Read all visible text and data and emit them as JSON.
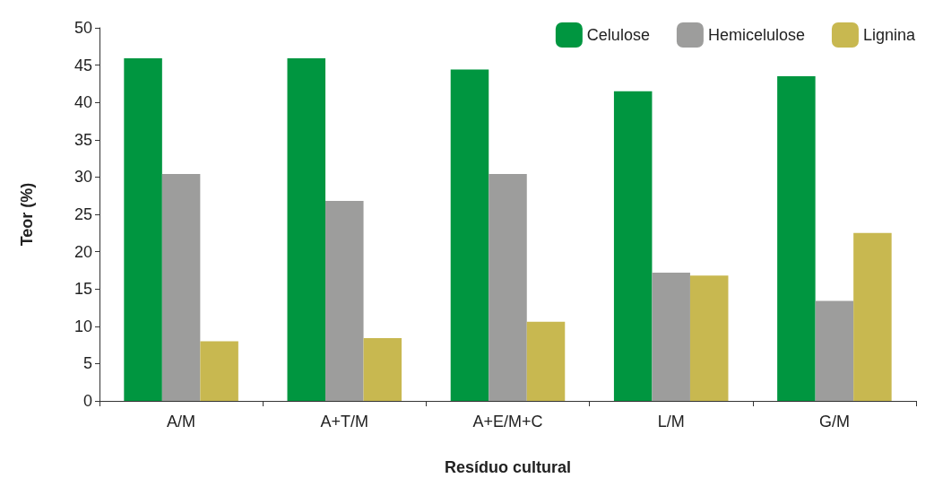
{
  "chart_data": {
    "type": "bar",
    "xlabel": "Resíduo cultural",
    "ylabel": "Teor (%)",
    "categories": [
      "A/M",
      "A+T/M",
      "A+E/M+C",
      "L/M",
      "G/M"
    ],
    "series": [
      {
        "name": "Celulose",
        "color": "#009640",
        "values": [
          45.9,
          45.9,
          44.4,
          41.5,
          43.5
        ]
      },
      {
        "name": "Hemicelulose",
        "color": "#9d9d9c",
        "values": [
          30.4,
          26.8,
          30.4,
          17.2,
          13.4
        ]
      },
      {
        "name": "Lignina",
        "color": "#c8b850",
        "values": [
          8.0,
          8.4,
          10.6,
          16.8,
          22.5
        ]
      }
    ],
    "ylim": [
      0,
      50
    ],
    "yticks": [
      0,
      5,
      10,
      15,
      20,
      25,
      30,
      35,
      40,
      45,
      50
    ],
    "grid": false,
    "legend": "top right"
  }
}
